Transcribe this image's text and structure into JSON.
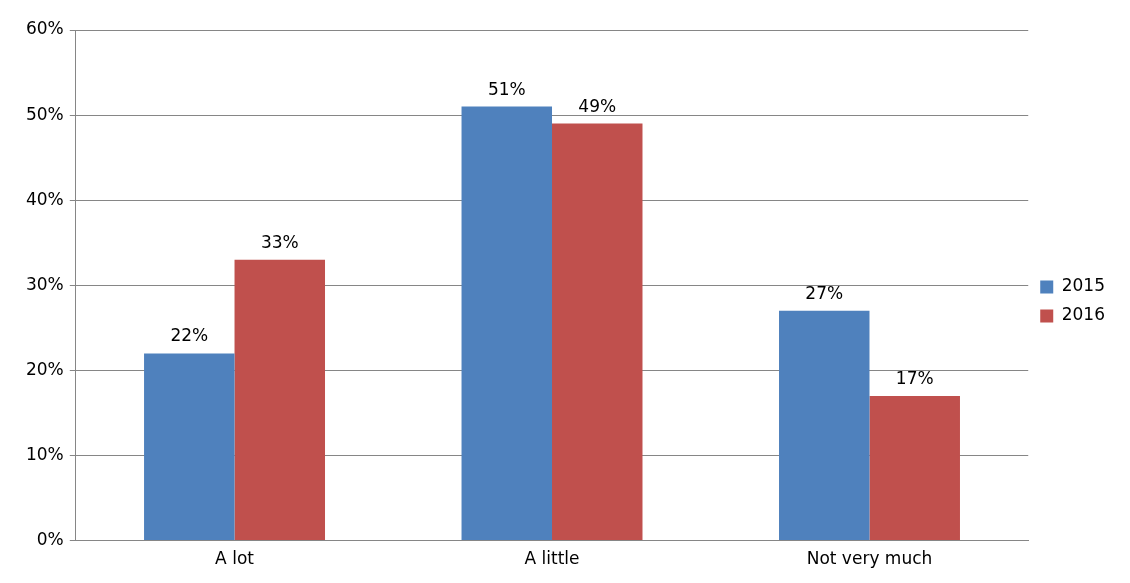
{
  "chart_data": {
    "type": "bar",
    "categories": [
      "A lot",
      "A little",
      "Not very much"
    ],
    "series": [
      {
        "name": "2015",
        "color": "#4f81bd",
        "values": [
          22,
          51,
          27
        ],
        "value_labels": [
          "22%",
          "51%",
          "27%"
        ]
      },
      {
        "name": "2016",
        "color": "#c0504d",
        "values": [
          33,
          49,
          17
        ],
        "value_labels": [
          "33%",
          "49%",
          "17%"
        ]
      }
    ],
    "ylim": [
      0,
      60
    ],
    "yticks": [
      {
        "value": 0,
        "label": "0%"
      },
      {
        "value": 10,
        "label": "10%"
      },
      {
        "value": 20,
        "label": "20%"
      },
      {
        "value": 30,
        "label": "30%"
      },
      {
        "value": 40,
        "label": "40%"
      },
      {
        "value": 50,
        "label": "50%"
      },
      {
        "value": 60,
        "label": "60%"
      }
    ],
    "grid": "y",
    "legend": "right"
  }
}
